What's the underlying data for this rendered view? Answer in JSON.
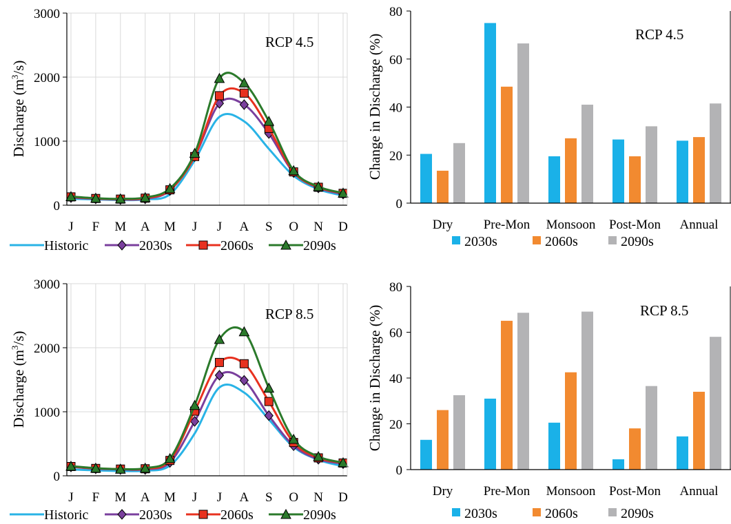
{
  "colors": {
    "Historic": "#29b3e6",
    "2030s": "#7a3f9d",
    "2060s": "#e8311f",
    "2090s": "#2b7a2b",
    "bar2030s": "#1ab1e8",
    "bar2060s": "#f28a30",
    "bar2090s": "#b3b3b5",
    "axis": "#000000",
    "grid": "#d9d9d9"
  },
  "chart_data": [
    {
      "type": "line",
      "annotation": "RCP 4.5",
      "ylabel": "Discharge (m³/s)",
      "ylabel_parts": [
        "Discharge (m",
        "3",
        "/s)"
      ],
      "categories": [
        "J",
        "F",
        "M",
        "A",
        "M",
        "J",
        "J",
        "A",
        "S",
        "O",
        "N",
        "D"
      ],
      "ylim": [
        0,
        3000
      ],
      "yticks": [
        "0",
        "1000",
        "2000",
        "3000"
      ],
      "yticks_values": [
        0,
        1000,
        2000,
        3000
      ],
      "grid": true,
      "legend_position": "bottom",
      "series": [
        {
          "name": "Historic",
          "marker": "none",
          "values": [
            100,
            90,
            80,
            90,
            170,
            700,
            1380,
            1310,
            880,
            460,
            250,
            150
          ]
        },
        {
          "name": "2030s",
          "marker": "diamond",
          "values": [
            120,
            100,
            90,
            100,
            230,
            760,
            1590,
            1570,
            1120,
            510,
            270,
            175
          ]
        },
        {
          "name": "2060s",
          "marker": "square",
          "values": [
            130,
            105,
            95,
            110,
            240,
            760,
            1710,
            1750,
            1200,
            520,
            280,
            185
          ]
        },
        {
          "name": "2090s",
          "marker": "triangle",
          "values": [
            135,
            110,
            100,
            120,
            260,
            810,
            1980,
            1910,
            1310,
            540,
            290,
            190
          ]
        }
      ]
    },
    {
      "type": "bar",
      "annotation": "RCP 4.5",
      "ylabel": "Change in Discharge (%)",
      "categories": [
        "Dry",
        "Pre-Mon",
        "Monsoon",
        "Post-Mon",
        "Annual"
      ],
      "ylim": [
        0,
        80
      ],
      "yticks": [
        "0",
        "20",
        "40",
        "60",
        "80"
      ],
      "yticks_values": [
        0,
        20,
        40,
        60,
        80
      ],
      "grid": false,
      "legend_position": "bottom",
      "series": [
        {
          "name": "2030s",
          "values": [
            20.5,
            75,
            19.5,
            26.5,
            26
          ]
        },
        {
          "name": "2060s",
          "values": [
            13.5,
            48.5,
            27,
            19.5,
            27.5
          ]
        },
        {
          "name": "2090s",
          "values": [
            25,
            66.5,
            41,
            32,
            41.5
          ]
        }
      ]
    },
    {
      "type": "line",
      "annotation": "RCP 8.5",
      "ylabel": "Discharge (m³/s)",
      "ylabel_parts": [
        "Discharge (m",
        "3",
        "/s)"
      ],
      "categories": [
        "J",
        "F",
        "M",
        "A",
        "M",
        "J",
        "J",
        "A",
        "S",
        "O",
        "N",
        "D"
      ],
      "ylim": [
        0,
        3000
      ],
      "yticks": [
        "0",
        "1000",
        "2000",
        "3000"
      ],
      "yticks_values": [
        0,
        1000,
        2000,
        3000
      ],
      "grid": true,
      "legend_position": "bottom",
      "series": [
        {
          "name": "Historic",
          "marker": "none",
          "values": [
            100,
            85,
            75,
            80,
            160,
            660,
            1380,
            1300,
            880,
            450,
            250,
            150
          ]
        },
        {
          "name": "2030s",
          "marker": "diamond",
          "values": [
            140,
            110,
            100,
            100,
            210,
            850,
            1570,
            1490,
            940,
            470,
            260,
            190
          ]
        },
        {
          "name": "2060s",
          "marker": "square",
          "values": [
            145,
            115,
            105,
            110,
            240,
            1010,
            1770,
            1750,
            1160,
            520,
            280,
            200
          ]
        },
        {
          "name": "2090s",
          "marker": "triangle",
          "values": [
            150,
            120,
            105,
            120,
            270,
            1100,
            2130,
            2250,
            1370,
            570,
            300,
            205
          ]
        }
      ]
    },
    {
      "type": "bar",
      "annotation": "RCP 8.5",
      "ylabel": "Change in Discharge (%)",
      "categories": [
        "Dry",
        "Pre-Mon",
        "Monsoon",
        "Post-Mon",
        "Annual"
      ],
      "ylim": [
        0,
        80
      ],
      "yticks": [
        "0",
        "20",
        "40",
        "60",
        "80"
      ],
      "yticks_values": [
        0,
        20,
        40,
        60,
        80
      ],
      "grid": false,
      "legend_position": "bottom",
      "series": [
        {
          "name": "2030s",
          "values": [
            13,
            31,
            20.5,
            4.5,
            14.5
          ]
        },
        {
          "name": "2060s",
          "values": [
            26,
            65,
            42.5,
            18,
            34
          ]
        },
        {
          "name": "2090s",
          "values": [
            32.5,
            68.5,
            69,
            36.5,
            58
          ]
        }
      ]
    }
  ]
}
